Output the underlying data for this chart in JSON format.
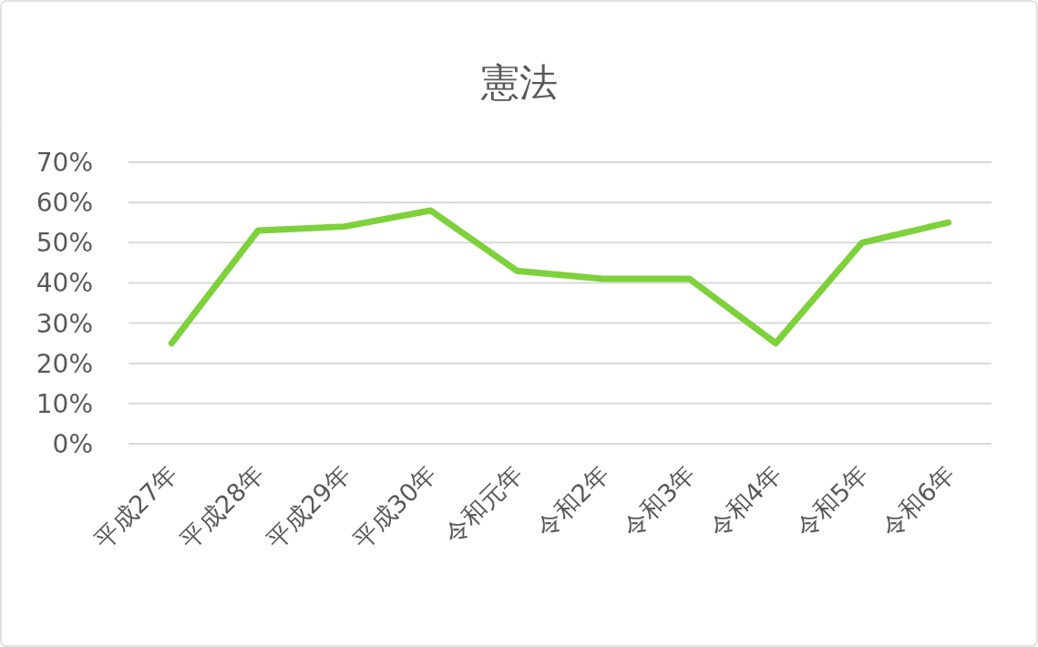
{
  "chart_data": {
    "type": "line",
    "title": "憲法",
    "categories": [
      "平成27年",
      "平成28年",
      "平成29年",
      "平成30年",
      "令和元年",
      "令和2年",
      "令和3年",
      "令和4年",
      "令和5年",
      "令和6年"
    ],
    "series": [
      {
        "color": "#7dd13b",
        "values": [
          25,
          53,
          54,
          58,
          43,
          41,
          41,
          25,
          50,
          55
        ]
      }
    ],
    "ylim": [
      0,
      70
    ],
    "yticks": [
      {
        "value": 0,
        "label": "0%"
      },
      {
        "value": 10,
        "label": "10%"
      },
      {
        "value": 20,
        "label": "20%"
      },
      {
        "value": 30,
        "label": "30%"
      },
      {
        "value": 40,
        "label": "40%"
      },
      {
        "value": 50,
        "label": "50%"
      },
      {
        "value": 60,
        "label": "60%"
      },
      {
        "value": 70,
        "label": "70%"
      }
    ],
    "grid": "y",
    "marker": "none",
    "line_style": "solid"
  }
}
